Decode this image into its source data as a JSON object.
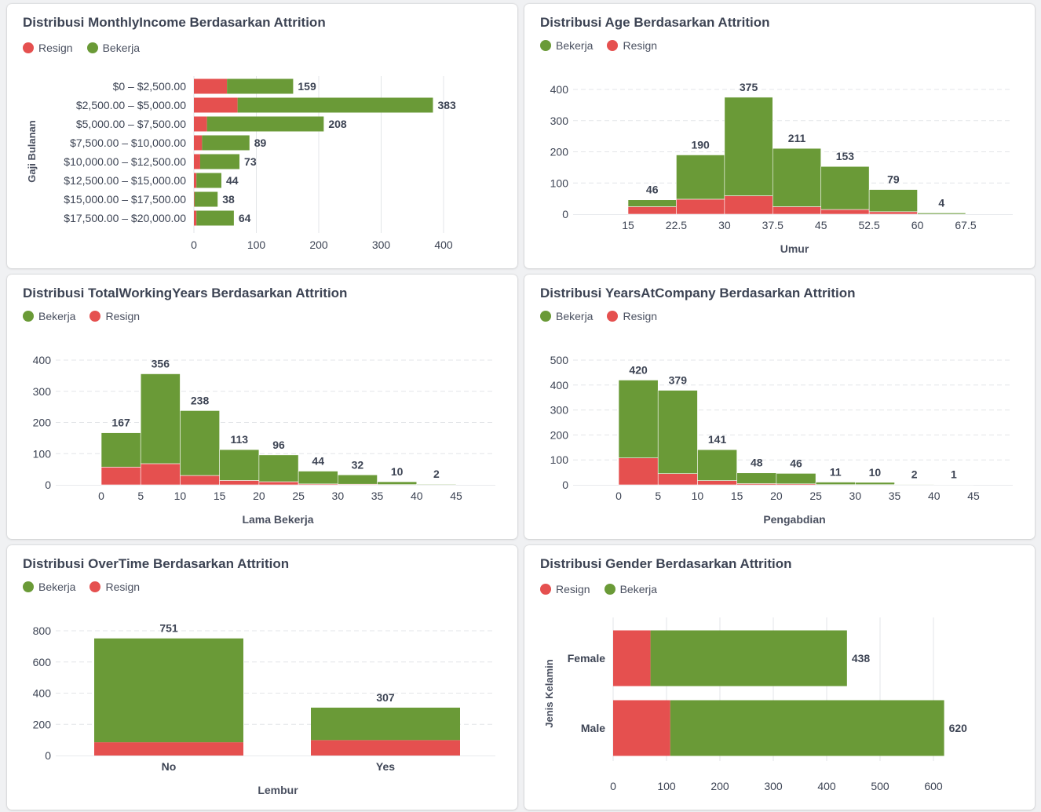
{
  "colors": {
    "resign": "#e5504f",
    "bekerja": "#6a9a37"
  },
  "legend_labels": {
    "resign": "Resign",
    "bekerja": "Bekerja"
  },
  "chart_data": [
    {
      "id": "income",
      "type": "bar",
      "orientation": "horizontal",
      "stacked": true,
      "title": "Distribusi MonthlyIncome Berdasarkan Attrition",
      "legend_order": [
        "resign",
        "bekerja"
      ],
      "ylabel": "Gaji Bulanan",
      "xlabel": "",
      "categories": [
        "$0 – $2,500.00",
        "$2,500.00 – $5,000.00",
        "$5,000.00 – $7,500.00",
        "$7,500.00 – $10,000.00",
        "$10,000.00 – $12,500.00",
        "$12,500.00 – $15,000.00",
        "$15,000.00 – $17,500.00",
        "$17,500.00 – $20,000.00"
      ],
      "series": [
        {
          "name": "Resign",
          "key": "resign",
          "values": [
            53,
            70,
            21,
            13,
            10,
            4,
            1,
            4
          ]
        },
        {
          "name": "Bekerja",
          "key": "bekerja",
          "values": [
            106,
            313,
            187,
            76,
            63,
            40,
            37,
            60
          ]
        }
      ],
      "totals": [
        159,
        383,
        208,
        89,
        73,
        44,
        38,
        64
      ],
      "xlim": [
        0,
        400
      ],
      "xticks": [
        0,
        100,
        200,
        300,
        400
      ],
      "grid": true
    },
    {
      "id": "age",
      "type": "histogram",
      "stacked": true,
      "title": "Distribusi Age Berdasarkan Attrition",
      "legend_order": [
        "bekerja",
        "resign"
      ],
      "xlabel": "Umur",
      "ylabel": "",
      "bin_edges": [
        15,
        22.5,
        30,
        37.5,
        45,
        52.5,
        60,
        67.5
      ],
      "series": [
        {
          "name": "Resign",
          "key": "resign",
          "values": [
            24,
            48,
            59,
            24,
            15,
            8,
            0
          ]
        },
        {
          "name": "Bekerja",
          "key": "bekerja",
          "values": [
            22,
            142,
            316,
            187,
            138,
            71,
            4
          ]
        }
      ],
      "totals": [
        46,
        190,
        375,
        211,
        153,
        79,
        4
      ],
      "xticks": [
        "15",
        "22.5",
        "30",
        "37.5",
        "45",
        "52.5",
        "60",
        "67.5"
      ],
      "ylim": [
        0,
        400
      ],
      "yticks": [
        0,
        100,
        200,
        300,
        400
      ],
      "grid": true
    },
    {
      "id": "twy",
      "type": "histogram",
      "stacked": true,
      "title": "Distribusi TotalWorkingYears Berdasarkan Attrition",
      "legend_order": [
        "bekerja",
        "resign"
      ],
      "xlabel": "Lama Bekerja",
      "ylabel": "",
      "bin_edges": [
        0,
        5,
        10,
        15,
        20,
        25,
        30,
        35,
        40,
        45
      ],
      "series": [
        {
          "name": "Resign",
          "key": "resign",
          "values": [
            57,
            68,
            30,
            14,
            10,
            3,
            2,
            1,
            0
          ]
        },
        {
          "name": "Bekerja",
          "key": "bekerja",
          "values": [
            110,
            288,
            208,
            99,
            86,
            41,
            30,
            9,
            2
          ]
        }
      ],
      "totals": [
        167,
        356,
        238,
        113,
        96,
        44,
        32,
        10,
        2
      ],
      "xticks": [
        "0",
        "5",
        "10",
        "15",
        "20",
        "25",
        "30",
        "35",
        "40",
        "45"
      ],
      "ylim": [
        0,
        400
      ],
      "yticks": [
        0,
        100,
        200,
        300,
        400
      ],
      "grid": true
    },
    {
      "id": "yac",
      "type": "histogram",
      "stacked": true,
      "title": "Distribusi YearsAtCompany Berdasarkan Attrition",
      "legend_order": [
        "bekerja",
        "resign"
      ],
      "xlabel": "Pengabdian",
      "ylabel": "",
      "bin_edges": [
        0,
        5,
        10,
        15,
        20,
        25,
        30,
        35,
        40,
        45
      ],
      "series": [
        {
          "name": "Resign",
          "key": "resign",
          "values": [
            108,
            45,
            17,
            5,
            4,
            1,
            1,
            0,
            1
          ]
        },
        {
          "name": "Bekerja",
          "key": "bekerja",
          "values": [
            312,
            334,
            124,
            43,
            42,
            10,
            9,
            2,
            0
          ]
        }
      ],
      "totals": [
        420,
        379,
        141,
        48,
        46,
        11,
        10,
        2,
        1
      ],
      "xticks": [
        "0",
        "5",
        "10",
        "15",
        "20",
        "25",
        "30",
        "35",
        "40",
        "45"
      ],
      "ylim": [
        0,
        500
      ],
      "yticks": [
        0,
        100,
        200,
        300,
        400,
        500
      ],
      "grid": true
    },
    {
      "id": "overtime",
      "type": "bar",
      "orientation": "vertical",
      "stacked": true,
      "title": "Distribusi OverTime Berdasarkan Attrition",
      "legend_order": [
        "bekerja",
        "resign"
      ],
      "xlabel": "Lembur",
      "ylabel": "",
      "categories": [
        "No",
        "Yes"
      ],
      "series": [
        {
          "name": "Resign",
          "key": "resign",
          "values": [
            85,
            99
          ]
        },
        {
          "name": "Bekerja",
          "key": "bekerja",
          "values": [
            666,
            208
          ]
        }
      ],
      "totals": [
        751,
        307
      ],
      "ylim": [
        0,
        800
      ],
      "yticks": [
        0,
        200,
        400,
        600,
        800
      ],
      "grid": true
    },
    {
      "id": "gender",
      "type": "bar",
      "orientation": "horizontal",
      "stacked": true,
      "title": "Distribusi Gender Berdasarkan Attrition",
      "legend_order": [
        "resign",
        "bekerja"
      ],
      "ylabel": "Jenis Kelamin",
      "xlabel": "",
      "categories": [
        "Female",
        "Male"
      ],
      "series": [
        {
          "name": "Resign",
          "key": "resign",
          "values": [
            70,
            107
          ]
        },
        {
          "name": "Bekerja",
          "key": "bekerja",
          "values": [
            368,
            513
          ]
        }
      ],
      "totals": [
        438,
        620
      ],
      "xlim": [
        0,
        600
      ],
      "xticks": [
        0,
        100,
        200,
        300,
        400,
        500,
        600
      ],
      "grid": true
    }
  ]
}
